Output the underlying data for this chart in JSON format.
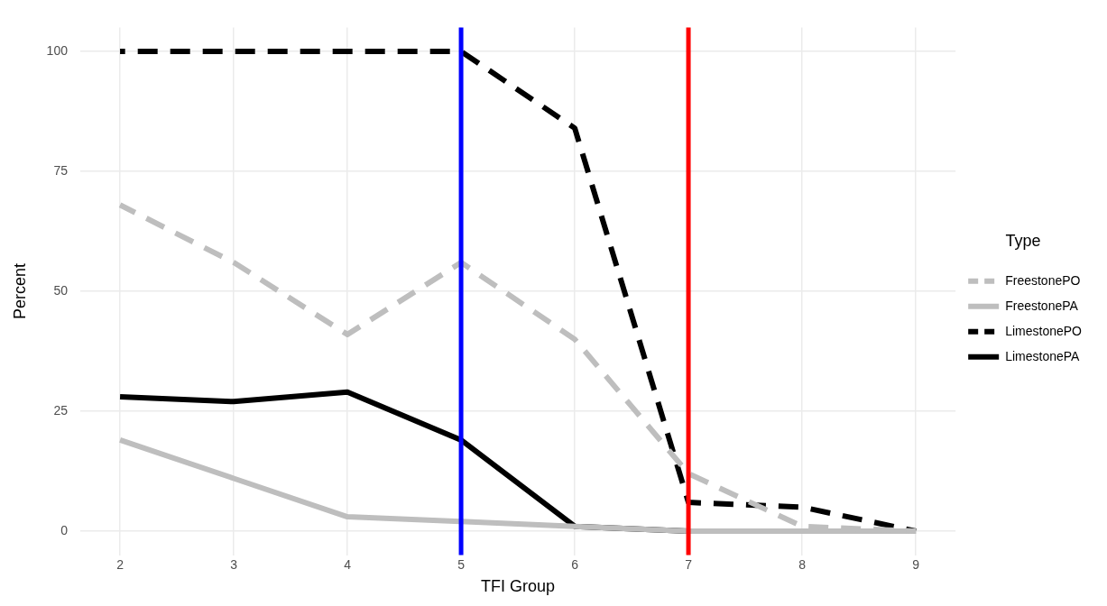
{
  "chart_data": {
    "type": "line",
    "xlabel": "TFI Group",
    "ylabel": "Percent",
    "legend_title": "Type",
    "legend": "right",
    "grid": true,
    "marker": "none",
    "x": [
      2,
      3,
      4,
      5,
      6,
      7,
      8,
      9
    ],
    "xlim": [
      1.65,
      9.35
    ],
    "xticks": [
      2,
      3,
      4,
      5,
      6,
      7,
      8,
      9
    ],
    "ylim": [
      -5,
      105
    ],
    "yticks": [
      0,
      25,
      50,
      75,
      100
    ],
    "series": [
      {
        "name": "FreestonePO",
        "color": "#bebebe",
        "line_style": "dashed",
        "values": [
          68,
          56,
          41,
          56,
          40,
          12,
          1,
          0
        ]
      },
      {
        "name": "FreestonePA",
        "color": "#bebebe",
        "line_style": "solid",
        "values": [
          19,
          11,
          3,
          2,
          1,
          0,
          0,
          0
        ]
      },
      {
        "name": "LimestonePO",
        "color": "#000000",
        "line_style": "dashed",
        "values": [
          100,
          100,
          100,
          100,
          84,
          6,
          5,
          0
        ]
      },
      {
        "name": "LimestonePA",
        "color": "#000000",
        "line_style": "solid",
        "values": [
          28,
          27,
          29,
          19,
          1,
          0,
          0,
          0
        ]
      }
    ],
    "ref_lines": [
      {
        "axis": "x",
        "value": 5,
        "color": "#0000ff"
      },
      {
        "axis": "x",
        "value": 7,
        "color": "#ff0000"
      }
    ]
  }
}
